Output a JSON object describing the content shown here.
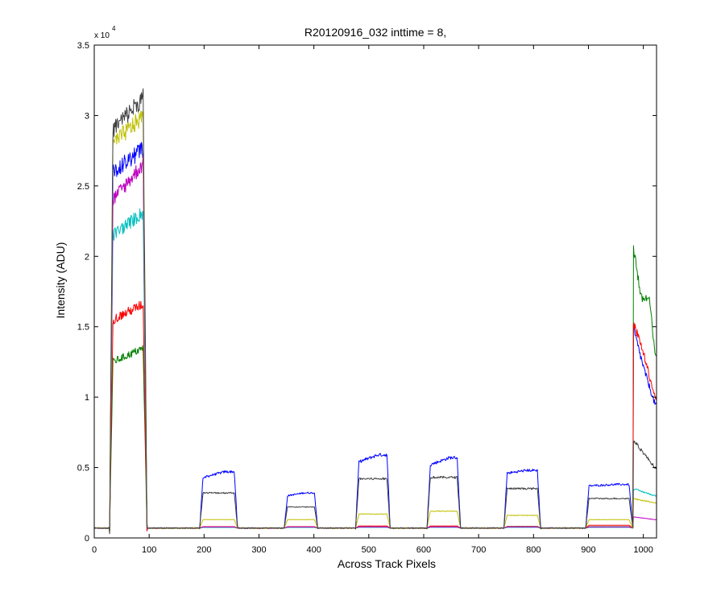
{
  "figure": {
    "title": "R20120916_032 inttime = 8,",
    "xlabel": "Across Track Pixels",
    "ylabel": "Intensity (ADU)",
    "exponent_prefix": "x 10",
    "exponent_power": "4"
  },
  "chart_data": {
    "type": "line",
    "title": "R20120916_032 inttime = 8,",
    "xlabel": "Across Track Pixels",
    "ylabel": "Intensity (ADU)",
    "y_multiplier": "x 10^4",
    "xlim": [
      0,
      1024
    ],
    "ylim": [
      0,
      35000
    ],
    "grid": false,
    "legend": "none",
    "x_ticks": [
      0,
      100,
      200,
      300,
      400,
      500,
      600,
      700,
      800,
      900,
      1000
    ],
    "x_tick_labels": [
      "0",
      "100",
      "200",
      "300",
      "400",
      "500",
      "600",
      "700",
      "800",
      "900",
      "1000"
    ],
    "y_ticks": [
      0,
      5000,
      10000,
      15000,
      20000,
      25000,
      30000,
      35000
    ],
    "y_tick_labels": [
      "0",
      "0.5",
      "1",
      "1.5",
      "2",
      "2.5",
      "3",
      "3.5"
    ],
    "baseline": 700,
    "edges": [
      [
        28,
        34,
        89,
        96
      ],
      [
        192,
        198,
        255,
        261
      ],
      [
        346,
        352,
        401,
        407
      ],
      [
        476,
        482,
        533,
        539
      ],
      [
        606,
        612,
        661,
        667
      ],
      [
        746,
        752,
        807,
        813
      ],
      [
        895,
        901,
        974,
        981
      ],
      [
        978,
        981,
        1024,
        1025
      ]
    ],
    "series": [
      {
        "color": "#0000ff",
        "levels": [
          [
            [
              0,
              26000
            ],
            [
              85,
              28500
            ]
          ],
          [
            [
              0,
              4300
            ],
            [
              40,
              4700
            ]
          ],
          [
            [
              0,
              3000
            ],
            [
              30,
              3200
            ]
          ],
          [
            [
              0,
              5400
            ],
            [
              35,
              5900
            ]
          ],
          [
            [
              0,
              5200
            ],
            [
              35,
              5700
            ]
          ],
          [
            [
              0,
              4600
            ],
            [
              35,
              4800
            ]
          ],
          [
            [
              0,
              3700
            ],
            [
              50,
              3800
            ]
          ],
          [
            [
              0,
              15000
            ],
            [
              20,
              12000
            ],
            [
              40,
              9500
            ]
          ]
        ]
      },
      {
        "color": "#008000",
        "levels": [
          [
            [
              0,
              12500
            ],
            [
              85,
              14000
            ]
          ],
          [
            [
              0,
              750
            ]
          ],
          [
            [
              0,
              750
            ]
          ],
          [
            [
              0,
              780
            ]
          ],
          [
            [
              0,
              780
            ]
          ],
          [
            [
              0,
              820
            ]
          ],
          [
            [
              0,
              800
            ]
          ],
          [
            [
              0,
              21000
            ],
            [
              15,
              17000
            ],
            [
              30,
              17000
            ],
            [
              40,
              13000
            ]
          ]
        ]
      },
      {
        "color": "#ff0000",
        "levels": [
          [
            [
              0,
              15500
            ],
            [
              85,
              17200
            ]
          ],
          [
            [
              0,
              800
            ]
          ],
          [
            [
              0,
              800
            ]
          ],
          [
            [
              0,
              850
            ]
          ],
          [
            [
              0,
              850
            ]
          ],
          [
            [
              0,
              800
            ]
          ],
          [
            [
              0,
              900
            ]
          ],
          [
            [
              0,
              15500
            ],
            [
              20,
              13000
            ],
            [
              40,
              10000
            ]
          ]
        ]
      },
      {
        "color": "#00bfbf",
        "levels": [
          [
            [
              0,
              21500
            ],
            [
              85,
              24000
            ]
          ],
          [
            [
              0,
              750
            ]
          ],
          [
            [
              0,
              750
            ]
          ],
          [
            [
              0,
              750
            ]
          ],
          [
            [
              0,
              750
            ]
          ],
          [
            [
              0,
              750
            ]
          ],
          [
            [
              0,
              750
            ]
          ],
          [
            [
              0,
              3500
            ],
            [
              40,
              3000
            ]
          ]
        ]
      },
      {
        "color": "#bf00bf",
        "levels": [
          [
            [
              0,
              24000
            ],
            [
              85,
              28000
            ]
          ],
          [
            [
              0,
              780
            ]
          ],
          [
            [
              0,
              780
            ]
          ],
          [
            [
              0,
              780
            ]
          ],
          [
            [
              0,
              780
            ]
          ],
          [
            [
              0,
              780
            ]
          ],
          [
            [
              0,
              780
            ]
          ],
          [
            [
              0,
              1500
            ],
            [
              40,
              1300
            ]
          ]
        ]
      },
      {
        "color": "#bfbf00",
        "levels": [
          [
            [
              0,
              28000
            ],
            [
              85,
              31000
            ]
          ],
          [
            [
              0,
              1300
            ]
          ],
          [
            [
              0,
              1300
            ]
          ],
          [
            [
              0,
              1700
            ]
          ],
          [
            [
              0,
              1900
            ]
          ],
          [
            [
              0,
              1600
            ]
          ],
          [
            [
              0,
              1300
            ]
          ],
          [
            [
              0,
              2800
            ],
            [
              40,
              2500
            ]
          ]
        ]
      },
      {
        "color": "#404040",
        "levels": [
          [
            [
              0,
              29000
            ],
            [
              85,
              32500
            ]
          ],
          [
            [
              0,
              3200
            ]
          ],
          [
            [
              0,
              2200
            ]
          ],
          [
            [
              0,
              4200
            ]
          ],
          [
            [
              0,
              4300
            ]
          ],
          [
            [
              0,
              3500
            ]
          ],
          [
            [
              0,
              2800
            ]
          ],
          [
            [
              0,
              7000
            ],
            [
              40,
              5000
            ]
          ]
        ]
      }
    ]
  }
}
